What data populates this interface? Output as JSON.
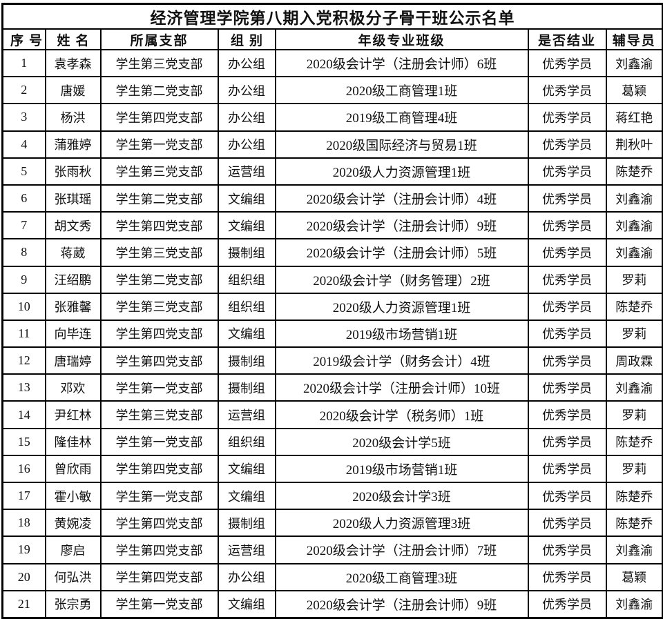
{
  "title": "经济管理学院第八期入党积极分子骨干班公示名单",
  "colors": {
    "border": "#000000",
    "text": "#111111",
    "background": "#ffffff"
  },
  "table": {
    "columns": [
      "序号",
      "姓名",
      "所属支部",
      "组别",
      "年级专业班级",
      "是否结业",
      "辅导员"
    ],
    "rows": [
      {
        "index": "1",
        "name": "袁孝森",
        "branch": "学生第三党支部",
        "group": "办公组",
        "class": "2020级会计学（注册会计师）6班",
        "status": "优秀学员",
        "counselor": "刘鑫渝"
      },
      {
        "index": "2",
        "name": "唐媛",
        "branch": "学生第二党支部",
        "group": "办公组",
        "class": "2020级工商管理1班",
        "status": "优秀学员",
        "counselor": "葛颖"
      },
      {
        "index": "3",
        "name": "杨洪",
        "branch": "学生第四党支部",
        "group": "办公组",
        "class": "2019级工商管理4班",
        "status": "优秀学员",
        "counselor": "蒋红艳"
      },
      {
        "index": "4",
        "name": "蒲雅婷",
        "branch": "学生第一党支部",
        "group": "办公组",
        "class": "2020级国际经济与贸易1班",
        "status": "优秀学员",
        "counselor": "荆秋叶"
      },
      {
        "index": "5",
        "name": "张雨秋",
        "branch": "学生第三党支部",
        "group": "运营组",
        "class": "2020级人力资源管理1班",
        "status": "优秀学员",
        "counselor": "陈楚乔"
      },
      {
        "index": "6",
        "name": "张琪瑶",
        "branch": "学生第二党支部",
        "group": "文编组",
        "class": "2020级会计学（注册会计师）4班",
        "status": "优秀学员",
        "counselor": "刘鑫渝"
      },
      {
        "index": "7",
        "name": "胡文秀",
        "branch": "学生第四党支部",
        "group": "文编组",
        "class": "2020级会计学（注册会计师）9班",
        "status": "优秀学员",
        "counselor": "刘鑫渝"
      },
      {
        "index": "8",
        "name": "蒋葳",
        "branch": "学生第三党支部",
        "group": "摄制组",
        "class": "2020级会计学（注册会计师）5班",
        "status": "优秀学员",
        "counselor": "刘鑫渝"
      },
      {
        "index": "9",
        "name": "汪绍鹏",
        "branch": "学生第二党支部",
        "group": "组织组",
        "class": "2020级会计学（财务管理）2班",
        "status": "优秀学员",
        "counselor": "罗莉"
      },
      {
        "index": "10",
        "name": "张雅馨",
        "branch": "学生第三党支部",
        "group": "组织组",
        "class": "2020级人力资源管理1班",
        "status": "优秀学员",
        "counselor": "陈楚乔"
      },
      {
        "index": "11",
        "name": "向毕连",
        "branch": "学生第四党支部",
        "group": "文编组",
        "class": "2019级市场营销1班",
        "status": "优秀学员",
        "counselor": "罗莉"
      },
      {
        "index": "12",
        "name": "唐瑞婷",
        "branch": "学生第四党支部",
        "group": "摄制组",
        "class": "2019级会计学（财务会计）4班",
        "status": "优秀学员",
        "counselor": "周政霖"
      },
      {
        "index": "13",
        "name": "邓欢",
        "branch": "学生第一党支部",
        "group": "摄制组",
        "class": "2020级会计学（注册会计师）10班",
        "status": "优秀学员",
        "counselor": "刘鑫渝"
      },
      {
        "index": "14",
        "name": "尹红林",
        "branch": "学生第三党支部",
        "group": "运营组",
        "class": "2020级会计学（税务师）1班",
        "status": "优秀学员",
        "counselor": "罗莉"
      },
      {
        "index": "15",
        "name": "隆佳林",
        "branch": "学生第一党支部",
        "group": "组织组",
        "class": "2020级会计学5班",
        "status": "优秀学员",
        "counselor": "陈楚乔"
      },
      {
        "index": "16",
        "name": "曾欣雨",
        "branch": "学生第四党支部",
        "group": "文编组",
        "class": "2019级市场营销1班",
        "status": "优秀学员",
        "counselor": "罗莉"
      },
      {
        "index": "17",
        "name": "霍小敏",
        "branch": "学生第一党支部",
        "group": "文编组",
        "class": "2020级会计学3班",
        "status": "优秀学员",
        "counselor": "陈楚乔"
      },
      {
        "index": "18",
        "name": "黄婉凌",
        "branch": "学生第四党支部",
        "group": "摄制组",
        "class": "2020级人力资源管理3班",
        "status": "优秀学员",
        "counselor": "陈楚乔"
      },
      {
        "index": "19",
        "name": "廖启",
        "branch": "学生第四党支部",
        "group": "运营组",
        "class": "2020级会计学（注册会计师）7班",
        "status": "优秀学员",
        "counselor": "刘鑫渝"
      },
      {
        "index": "20",
        "name": "何弘洪",
        "branch": "学生第四党支部",
        "group": "办公组",
        "class": "2020级工商管理3班",
        "status": "优秀学员",
        "counselor": "葛颖"
      },
      {
        "index": "21",
        "name": "张宗勇",
        "branch": "学生第一党支部",
        "group": "文编组",
        "class": "2020级会计学（注册会计师）9班",
        "status": "优秀学员",
        "counselor": "刘鑫渝"
      }
    ]
  }
}
